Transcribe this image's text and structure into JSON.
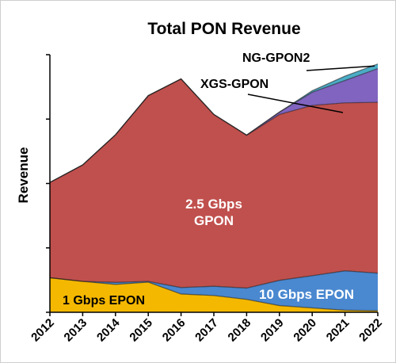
{
  "chart_data": {
    "type": "area",
    "stacked": true,
    "title": "Total PON Revenue",
    "ylabel": "Revenue",
    "xlabel": "",
    "x": [
      "2012",
      "2013",
      "2014",
      "2015",
      "2016",
      "2017",
      "2018",
      "2019",
      "2020",
      "2021",
      "2022"
    ],
    "ylim": [
      0,
      100
    ],
    "y_ticks_labeled": false,
    "series": [
      {
        "key": "epon1",
        "name": "1 Gbps EPON",
        "color": "#F5B800",
        "values": [
          13.4,
          12.0,
          10.8,
          11.7,
          7.1,
          6.5,
          5.0,
          2.6,
          1.7,
          0.8,
          0.6
        ]
      },
      {
        "key": "epon10",
        "name": "10 Gbps EPON",
        "color": "#4A88D0",
        "values": [
          0.0,
          0.0,
          0.8,
          0.3,
          2.5,
          3.6,
          4.4,
          9.8,
          12.5,
          15.3,
          14.6
        ]
      },
      {
        "key": "gpon25",
        "name": "2.5 Gbps GPON",
        "color": "#C0504D",
        "values": [
          37.0,
          45.2,
          57.3,
          72.1,
          81.0,
          66.7,
          59.3,
          64.4,
          66.1,
          65.2,
          66.3
        ]
      },
      {
        "key": "xgs",
        "name": "XGS-GPON",
        "color": "#8064C0",
        "values": [
          0.0,
          0.0,
          0.0,
          0.0,
          0.0,
          0.0,
          0.1,
          0.9,
          5.1,
          8.7,
          13.1
        ]
      },
      {
        "key": "ng2",
        "name": "NG-GPON2",
        "color": "#4BACC6",
        "values": [
          0.0,
          0.0,
          0.0,
          0.0,
          0.0,
          0.0,
          0.0,
          0.0,
          0.6,
          1.7,
          1.8
        ]
      }
    ],
    "labels": {
      "gpon25_line1": "2.5 Gbps",
      "gpon25_line2": "GPON",
      "epon1": "1 Gbps EPON",
      "epon10": "10 Gbps EPON",
      "xgs": "XGS-GPON",
      "ng2": "NG-GPON2"
    }
  }
}
